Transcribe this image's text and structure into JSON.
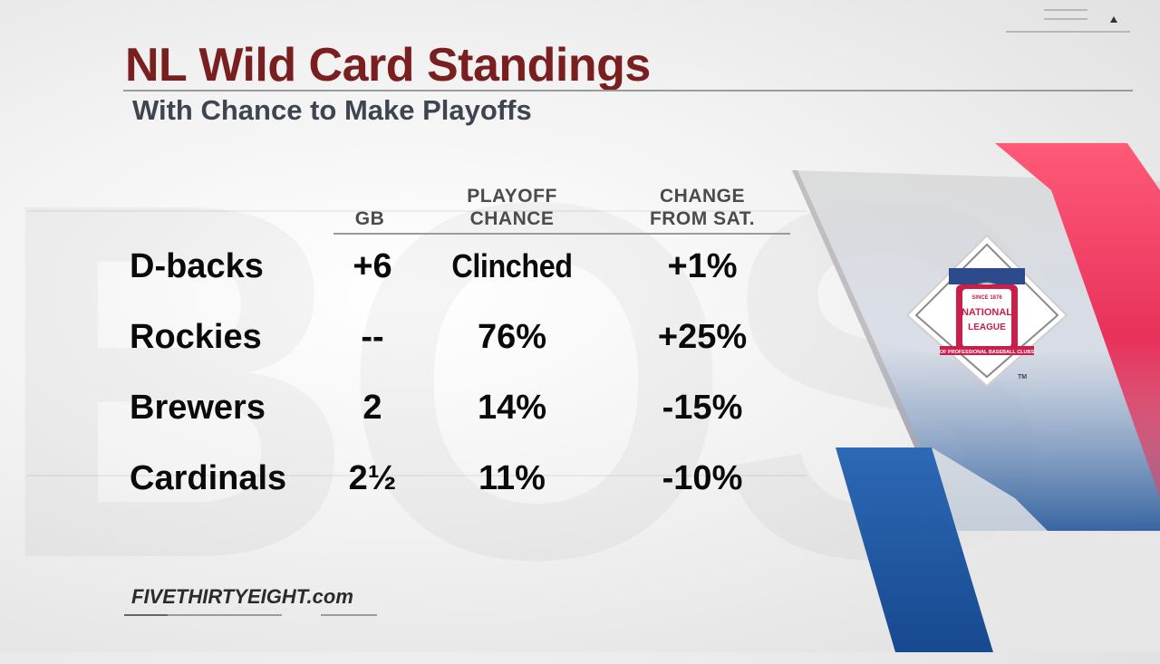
{
  "title": "NL Wild Card Standings",
  "subtitle": "With Chance to Make Playoffs",
  "columns": {
    "gb": [
      "GB"
    ],
    "playoff_chance": [
      "PLAYOFF",
      "CHANCE"
    ],
    "change": [
      "CHANGE",
      "FROM SAT."
    ]
  },
  "rows": [
    {
      "team": "D-backs",
      "gb": "+6",
      "playoff_chance": "Clinched",
      "change": "+1%"
    },
    {
      "team": "Rockies",
      "gb": "--",
      "playoff_chance": "76%",
      "change": "+25%"
    },
    {
      "team": "Brewers",
      "gb": "2",
      "playoff_chance": "14%",
      "change": "-15%"
    },
    {
      "team": "Cardinals",
      "gb": "2½",
      "playoff_chance": "11%",
      "change": "-10%"
    }
  ],
  "source": "FIVETHIRTYEIGHT.com",
  "logo": {
    "icon": "national-league-logo",
    "text": [
      "SINCE 1876",
      "NATIONAL",
      "LEAGUE",
      "OF PROFESSIONAL BASEBALL CLUBS",
      "TM"
    ]
  },
  "colors": {
    "title": "#7a1f1f",
    "subtitle": "#3f4550",
    "accent_red": "#e8315a",
    "accent_blue": "#1f5aa6"
  }
}
